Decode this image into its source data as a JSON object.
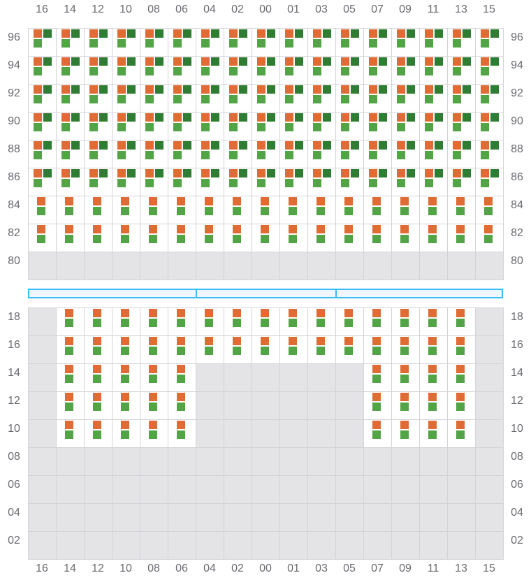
{
  "columns": [
    "16",
    "14",
    "12",
    "10",
    "08",
    "06",
    "04",
    "02",
    "00",
    "01",
    "03",
    "05",
    "07",
    "09",
    "11",
    "13",
    "15"
  ],
  "colors": {
    "orange": "#e06c35",
    "dark_green": "#2e7d32",
    "light_green": "#52a447",
    "empty": "#e4e4e7",
    "border": "#d4d4d8",
    "bar_border": "#38bdf8",
    "bar_fill": "#eff6ff"
  },
  "legend_note_cell_types": {
    "A": "orange+dark-green+light-green",
    "B": "orange+light-green",
    "-": "empty"
  },
  "top_section": {
    "rows": [
      {
        "label": "96",
        "cells": "AAAAAAAAAAAAAAAAA"
      },
      {
        "label": "94",
        "cells": "AAAAAAAAAAAAAAAAA"
      },
      {
        "label": "92",
        "cells": "AAAAAAAAAAAAAAAAA"
      },
      {
        "label": "90",
        "cells": "AAAAAAAAAAAAAAAAA"
      },
      {
        "label": "88",
        "cells": "AAAAAAAAAAAAAAAAA"
      },
      {
        "label": "86",
        "cells": "AAAAAAAAAAAAAAAAA"
      },
      {
        "label": "84",
        "cells": "BBBBBBBBBBBBBBBBB"
      },
      {
        "label": "82",
        "cells": "BBBBBBBBBBBBBBBBB"
      },
      {
        "label": "80",
        "cells": "-----------------"
      }
    ]
  },
  "divider_bar": {
    "segments": 3
  },
  "bottom_section": {
    "rows": [
      {
        "label": "18",
        "cells": "-BBBBBBBBBBBBBBB-"
      },
      {
        "label": "16",
        "cells": "-BBBBBBBBBBBBBBB-"
      },
      {
        "label": "14",
        "cells": "-BBBBB------BBBB-"
      },
      {
        "label": "12",
        "cells": "-BBBBB------BBBB-"
      },
      {
        "label": "10",
        "cells": "-BBBBB------BBBB-"
      },
      {
        "label": "08",
        "cells": "-----------------"
      },
      {
        "label": "06",
        "cells": "-----------------"
      },
      {
        "label": "04",
        "cells": "-----------------"
      },
      {
        "label": "02",
        "cells": "-----------------"
      }
    ]
  }
}
